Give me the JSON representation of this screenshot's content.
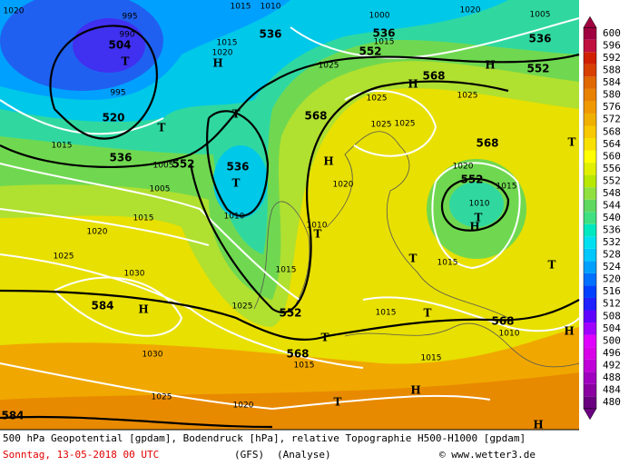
{
  "legend": {
    "ticks": [
      480,
      484,
      488,
      492,
      496,
      500,
      504,
      508,
      512,
      516,
      520,
      524,
      528,
      532,
      536,
      540,
      544,
      548,
      552,
      556,
      560,
      564,
      568,
      572,
      576,
      580,
      584,
      588,
      592,
      596,
      600
    ],
    "colors": [
      "#6a0080",
      "#8a00a0",
      "#a000c0",
      "#c000d8",
      "#d800e8",
      "#e000ff",
      "#a000ff",
      "#6000ff",
      "#2020ff",
      "#0040ff",
      "#0070ff",
      "#00a0ff",
      "#00c8ff",
      "#00e0f0",
      "#00e8c0",
      "#40e080",
      "#60d860",
      "#90e040",
      "#b8e800",
      "#e0f000",
      "#ffff00",
      "#f8e000",
      "#f8c800",
      "#f0b000",
      "#f09800",
      "#e88000",
      "#e06800",
      "#d84000",
      "#d02000",
      "#c01040",
      "#a00040"
    ]
  },
  "labels": [
    "1020",
    "995",
    "990",
    "504",
    "T",
    "995",
    "520",
    "1015",
    "536",
    "T",
    "1015",
    "1010",
    "536",
    "1015",
    "1020",
    "H",
    "1025",
    "552",
    "536",
    "1000",
    "1015",
    "1020",
    "1005",
    "536",
    "552",
    "H",
    "568",
    "H",
    "1025",
    "568",
    "1025",
    "1025",
    "1025",
    "T",
    "552",
    "1005",
    "536",
    "T",
    "H",
    "1020",
    "1005",
    "1015",
    "1010",
    "1010",
    "T",
    "568",
    "T",
    "1020",
    "552",
    "1015",
    "1010",
    "T",
    "H",
    "1020",
    "1025",
    "T",
    "1015",
    "1015",
    "T",
    "1030",
    "1025",
    "584",
    "H",
    "552",
    "1015",
    "T",
    "568",
    "1010",
    "H",
    "T",
    "568",
    "1015",
    "1015",
    "1030",
    "H",
    "1025",
    "T",
    "1020",
    "584",
    "H"
  ],
  "footer": {
    "line1": "500 hPa Geopotential [gpdam], Bodendruck [hPa], relative Topographie H500-H1000 [gpdam]",
    "date": "Sonntag, 13-05-2018  00 UTC",
    "model": "(GFS)",
    "run": "(Analyse)",
    "credit": "© www.wetter3.de"
  }
}
